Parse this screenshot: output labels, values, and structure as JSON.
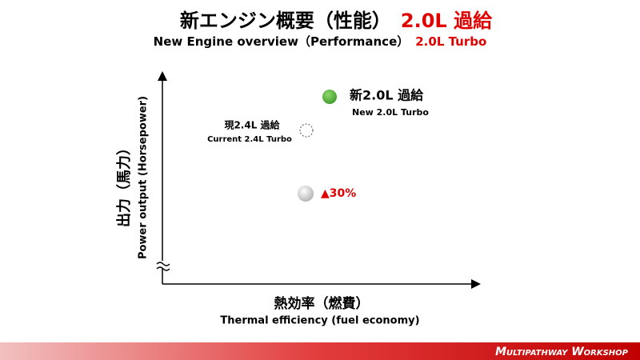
{
  "title": {
    "main": "新エンジン概要（性能）",
    "highlight": "2.0L 過給"
  },
  "subtitle": {
    "main": "New Engine overview（Performance）",
    "highlight": "2.0L Turbo"
  },
  "y_axis": {
    "label_ja": "出力（馬力）",
    "label_en": "Power output (Horsepower)"
  },
  "x_axis": {
    "label_ja": "熱効率（燃費）",
    "label_en": "Thermal efficiency (fuel economy)"
  },
  "points": [
    {
      "label_ja": "新2.0L 過給",
      "label_en": "New 2.0L Turbo"
    },
    {
      "label_ja": "現2.4L 過給",
      "label_en": "Current 2.4L Turbo"
    },
    {
      "label": "▲30%"
    }
  ],
  "footer": "Multipathway Workshop"
}
